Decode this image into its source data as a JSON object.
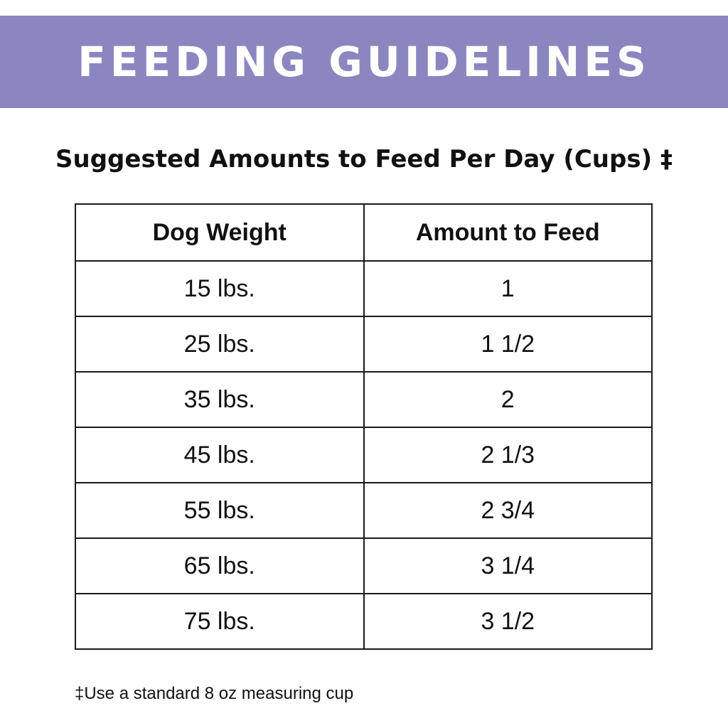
{
  "banner": {
    "title": "FEEDING GUIDELINES",
    "background_color": "#8c86c0",
    "text_color": "#ffffff"
  },
  "subtitle": "Suggested Amounts to Feed Per Day (Cups) ‡",
  "table": {
    "headers": [
      "Dog Weight",
      "Amount to Feed"
    ],
    "rows": [
      [
        "15 lbs.",
        "1"
      ],
      [
        "25 lbs.",
        "1 1/2"
      ],
      [
        "35 lbs.",
        "2"
      ],
      [
        "45 lbs.",
        "2 1/3"
      ],
      [
        "55 lbs.",
        "2 3/4"
      ],
      [
        "65 lbs.",
        "3 1/4"
      ],
      [
        "75 lbs.",
        "3 1/2"
      ]
    ]
  },
  "footnote": "‡Use a standard 8 oz measuring cup"
}
